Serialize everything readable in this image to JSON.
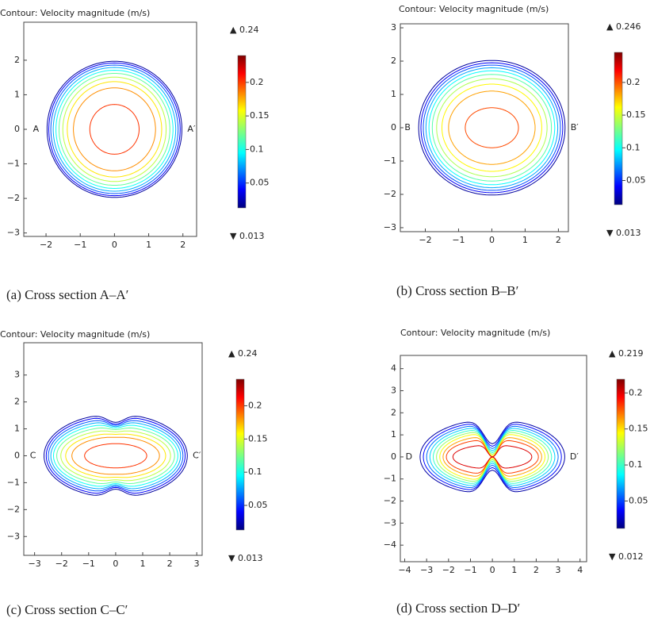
{
  "chart_data": [
    {
      "type": "contour",
      "colormap": "jet",
      "title": "Contour: Velocity magnitude (m/s)",
      "caption": "(a) Cross section A–A′",
      "section_labels": [
        "A",
        "A′"
      ],
      "xlim": [
        -2.65,
        2.4
      ],
      "ylim": [
        -3.1,
        3.1
      ],
      "xticks": [
        {
          "value": -2,
          "label": "−2"
        },
        {
          "value": -1,
          "label": "−1"
        },
        0,
        1,
        2
      ],
      "yticks": [
        {
          "value": -3,
          "label": "−3"
        },
        {
          "value": -2,
          "label": "−2"
        },
        {
          "value": -1,
          "label": "−1"
        },
        0,
        1,
        2
      ],
      "cmin": {
        "value": 0.013,
        "label": "▼ 0.013"
      },
      "cmax": {
        "value": 0.24,
        "label": "▲ 0.24"
      },
      "cticks": [
        0.05,
        0.1,
        0.15,
        0.2
      ],
      "contours": {
        "levels": [
          0.02,
          0.04,
          0.06,
          0.08,
          0.1,
          0.12,
          0.14,
          0.16,
          0.18,
          0.2
        ],
        "rx": [
          1.97,
          1.92,
          1.86,
          1.79,
          1.71,
          1.62,
          1.51,
          1.38,
          1.2,
          0.72
        ],
        "ry": [
          1.97,
          1.92,
          1.86,
          1.79,
          1.71,
          1.62,
          1.51,
          1.38,
          1.2,
          0.72
        ],
        "pinch": [
          0,
          0,
          0,
          0,
          0,
          0,
          0,
          0,
          0,
          0
        ]
      }
    },
    {
      "type": "contour",
      "colormap": "jet",
      "title": "Contour: Velocity magnitude (m/s)",
      "caption": "(b) Cross section B–B′",
      "section_labels": [
        "B",
        "B′"
      ],
      "xlim": [
        -2.75,
        2.3
      ],
      "ylim": [
        -3.12,
        3.12
      ],
      "xticks": [
        {
          "value": -2,
          "label": "−2"
        },
        {
          "value": -1,
          "label": "−1"
        },
        0,
        1,
        2
      ],
      "yticks": [
        {
          "value": -3,
          "label": "−3"
        },
        {
          "value": -2,
          "label": "−2"
        },
        {
          "value": -1,
          "label": "−1"
        },
        0,
        1,
        2,
        3
      ],
      "cmin": {
        "value": 0.013,
        "label": "▼ 0.013"
      },
      "cmax": {
        "value": 0.246,
        "label": "▲ 0.246"
      },
      "cticks": [
        0.05,
        0.1,
        0.15,
        0.2
      ],
      "contours": {
        "levels": [
          0.02,
          0.04,
          0.06,
          0.08,
          0.1,
          0.12,
          0.14,
          0.16,
          0.18,
          0.2
        ],
        "rx": [
          2.2,
          2.13,
          2.06,
          1.98,
          1.89,
          1.79,
          1.66,
          1.5,
          1.3,
          0.8
        ],
        "ry": [
          2.02,
          1.95,
          1.88,
          1.8,
          1.71,
          1.6,
          1.47,
          1.31,
          1.1,
          0.6
        ],
        "pinch": [
          0,
          0,
          0,
          0,
          0,
          0,
          0,
          0,
          0,
          0
        ]
      }
    },
    {
      "type": "contour",
      "colormap": "jet",
      "title": "Contour: Velocity magnitude (m/s)",
      "caption": "(c) Cross section C–C′",
      "section_labels": [
        "C",
        "C′"
      ],
      "xlim": [
        -3.4,
        3.2
      ],
      "ylim": [
        -3.7,
        4.2
      ],
      "xticks": [
        {
          "value": -3,
          "label": "−3"
        },
        {
          "value": -2,
          "label": "−2"
        },
        {
          "value": -1,
          "label": "−1"
        },
        0,
        1,
        2,
        3
      ],
      "yticks": [
        {
          "value": -3,
          "label": "−3"
        },
        {
          "value": -2,
          "label": "−2"
        },
        {
          "value": -1,
          "label": "−1"
        },
        0,
        1,
        2,
        3
      ],
      "cmin": {
        "value": 0.013,
        "label": "▼ 0.013"
      },
      "cmax": {
        "value": 0.24,
        "label": "▲ 0.24"
      },
      "cticks": [
        0.05,
        0.1,
        0.15,
        0.2
      ],
      "contours": {
        "levels": [
          0.02,
          0.04,
          0.06,
          0.08,
          0.1,
          0.12,
          0.14,
          0.16,
          0.18,
          0.2
        ],
        "rx": [
          2.65,
          2.57,
          2.49,
          2.4,
          2.3,
          2.18,
          2.03,
          1.85,
          1.62,
          1.15
        ],
        "ry": [
          1.55,
          1.47,
          1.38,
          1.29,
          1.19,
          1.08,
          0.96,
          0.83,
          0.7,
          0.45
        ],
        "pinch": [
          0.2,
          0.2,
          0.18,
          0.16,
          0.13,
          0.1,
          0.07,
          0.04,
          0.02,
          0
        ]
      }
    },
    {
      "type": "contour",
      "colormap": "jet",
      "title": "Contour: Velocity magnitude (m/s)",
      "caption": "(d) Cross section D–D′",
      "section_labels": [
        "D",
        "D′"
      ],
      "xlim": [
        -4.2,
        4.3
      ],
      "ylim": [
        -4.75,
        4.6
      ],
      "xticks": [
        {
          "value": -4,
          "label": "−4"
        },
        {
          "value": -3,
          "label": "−3"
        },
        {
          "value": -2,
          "label": "−2"
        },
        {
          "value": -1,
          "label": "−1"
        },
        0,
        1,
        2,
        3,
        4
      ],
      "yticks": [
        {
          "value": -4,
          "label": "−4"
        },
        {
          "value": -3,
          "label": "−3"
        },
        {
          "value": -2,
          "label": "−2"
        },
        {
          "value": -1,
          "label": "−1"
        },
        0,
        1,
        2,
        3,
        4
      ],
      "cmin": {
        "value": 0.012,
        "label": "▼ 0.012"
      },
      "cmax": {
        "value": 0.219,
        "label": "▲ 0.219"
      },
      "cticks": [
        0.05,
        0.1,
        0.15,
        0.2
      ],
      "contours": {
        "levels": [
          0.02,
          0.04,
          0.06,
          0.08,
          0.1,
          0.12,
          0.14,
          0.16,
          0.18,
          0.2
        ],
        "rx": [
          3.3,
          3.15,
          3.0,
          2.85,
          2.7,
          2.55,
          2.4,
          2.25,
          2.1,
          1.8
        ],
        "ry": [
          1.7,
          1.6,
          1.5,
          1.4,
          1.3,
          1.2,
          1.1,
          0.95,
          0.8,
          0.55
        ],
        "pinch": [
          0.65,
          0.7,
          0.75,
          0.8,
          0.85,
          0.9,
          0.95,
          1,
          1,
          1
        ]
      }
    }
  ]
}
